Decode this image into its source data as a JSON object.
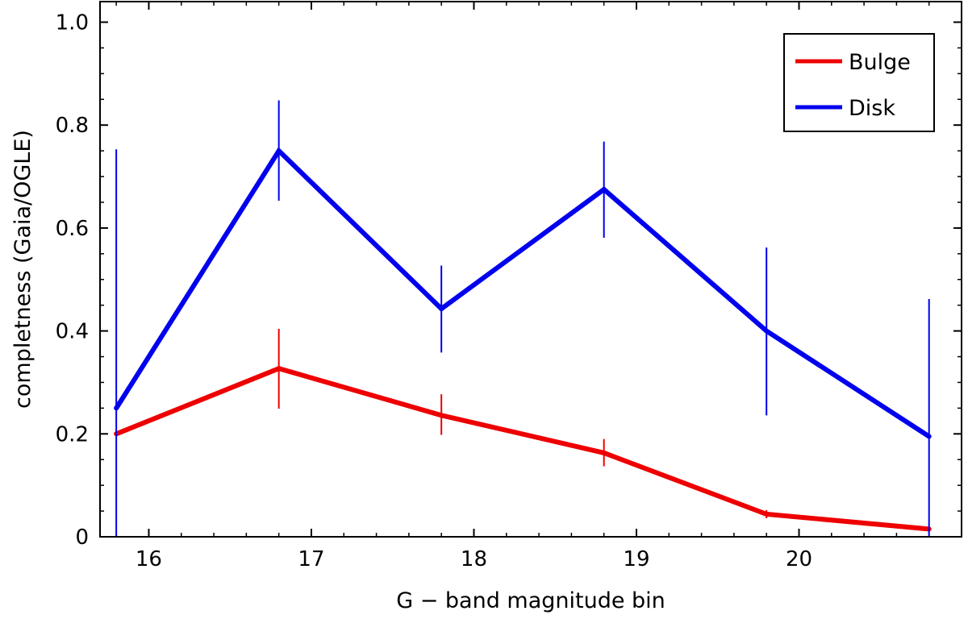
{
  "chart_data": {
    "type": "line",
    "title": "",
    "xlabel": "G − band magnitude bin",
    "ylabel": "completness (Gaia/OGLE)",
    "xlim": [
      15.7,
      21.0
    ],
    "ylim": [
      0,
      1.0
    ],
    "x_ticks": [
      16,
      17,
      18,
      19,
      20
    ],
    "x_tick_labels": [
      "16",
      "17",
      "18",
      "19",
      "20"
    ],
    "x_minor_step": 0.2,
    "y_ticks": [
      0,
      0.2,
      0.4,
      0.6,
      0.8,
      1.0
    ],
    "y_tick_labels": [
      "0",
      "0.2",
      "0.4",
      "0.6",
      "0.8",
      "1.0"
    ],
    "y_minor_step": 0.05,
    "grid": false,
    "legend_position": "top-right",
    "x": [
      15.8,
      16.8,
      17.8,
      18.8,
      19.8,
      20.8
    ],
    "series": [
      {
        "name": "Bulge",
        "color": "#ee0000",
        "values": [
          0.2,
          0.327,
          0.236,
          0.163,
          0.044,
          0.015
        ],
        "err_low": [
          0.2,
          0.249,
          0.198,
          0.137,
          0.036,
          0.011
        ],
        "err_high": [
          0.2,
          0.404,
          0.277,
          0.19,
          0.052,
          0.019
        ]
      },
      {
        "name": "Disk",
        "color": "#0000ee",
        "values": [
          0.25,
          0.75,
          0.443,
          0.675,
          0.4,
          0.195
        ],
        "err_low": [
          0.0,
          0.653,
          0.358,
          0.581,
          0.236,
          0.0
        ],
        "err_high": [
          0.753,
          0.848,
          0.527,
          0.768,
          0.562,
          0.462
        ]
      }
    ]
  }
}
